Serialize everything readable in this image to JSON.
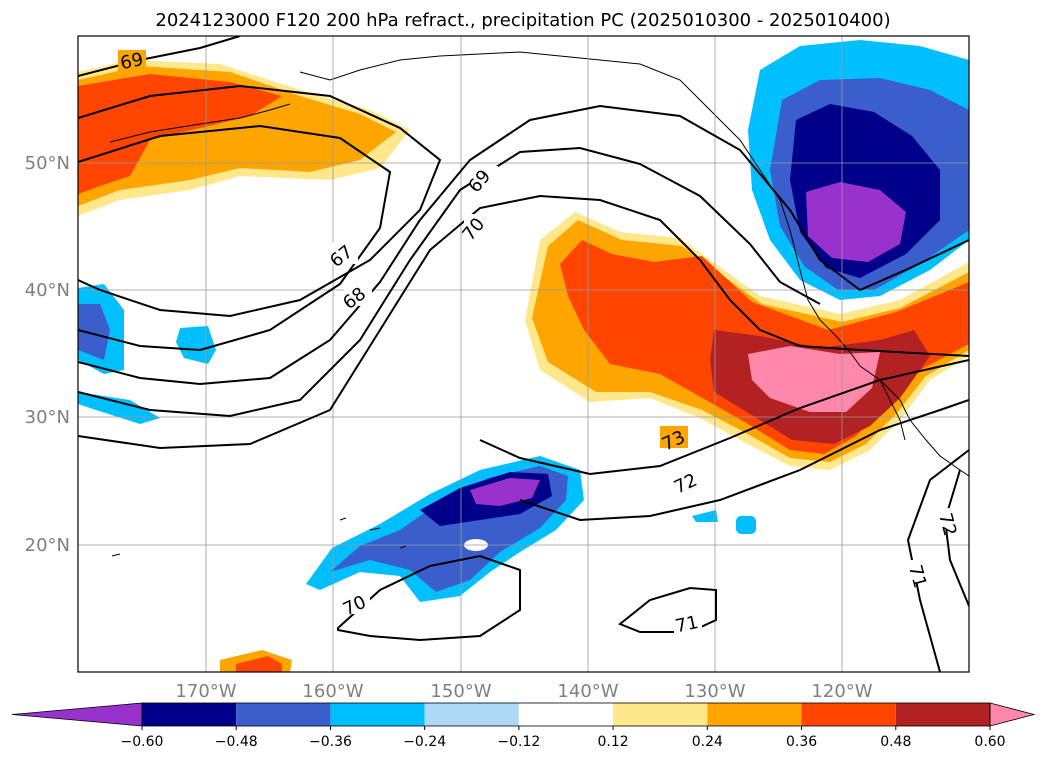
{
  "title": "2024123000 F120 200 hPa refract., precipitation PC (2025010300 - 2025010400)",
  "map": {
    "lon_labels": [
      "170°W",
      "160°W",
      "150°W",
      "140°W",
      "130°W",
      "120°W"
    ],
    "lat_labels": [
      "50°N",
      "40°N",
      "30°N",
      "20°N"
    ],
    "grid": true,
    "contour_labels": [
      "69",
      "67",
      "68",
      "69",
      "70",
      "73",
      "72",
      "70",
      "71",
      "71",
      "72"
    ]
  },
  "colorbar": {
    "ticks": [
      "−0.60",
      "−0.48",
      "−0.36",
      "−0.24",
      "−0.12",
      "0.12",
      "0.24",
      "0.36",
      "0.48",
      "0.60"
    ],
    "colors": [
      "#9932cc",
      "#00008b",
      "#3a5fcd",
      "#00bfff",
      "#add8f6",
      "#ffffff",
      "#ffe78c",
      "#ffa500",
      "#ff4500",
      "#b22222",
      "#ff88aa"
    ],
    "extend": "both"
  }
}
